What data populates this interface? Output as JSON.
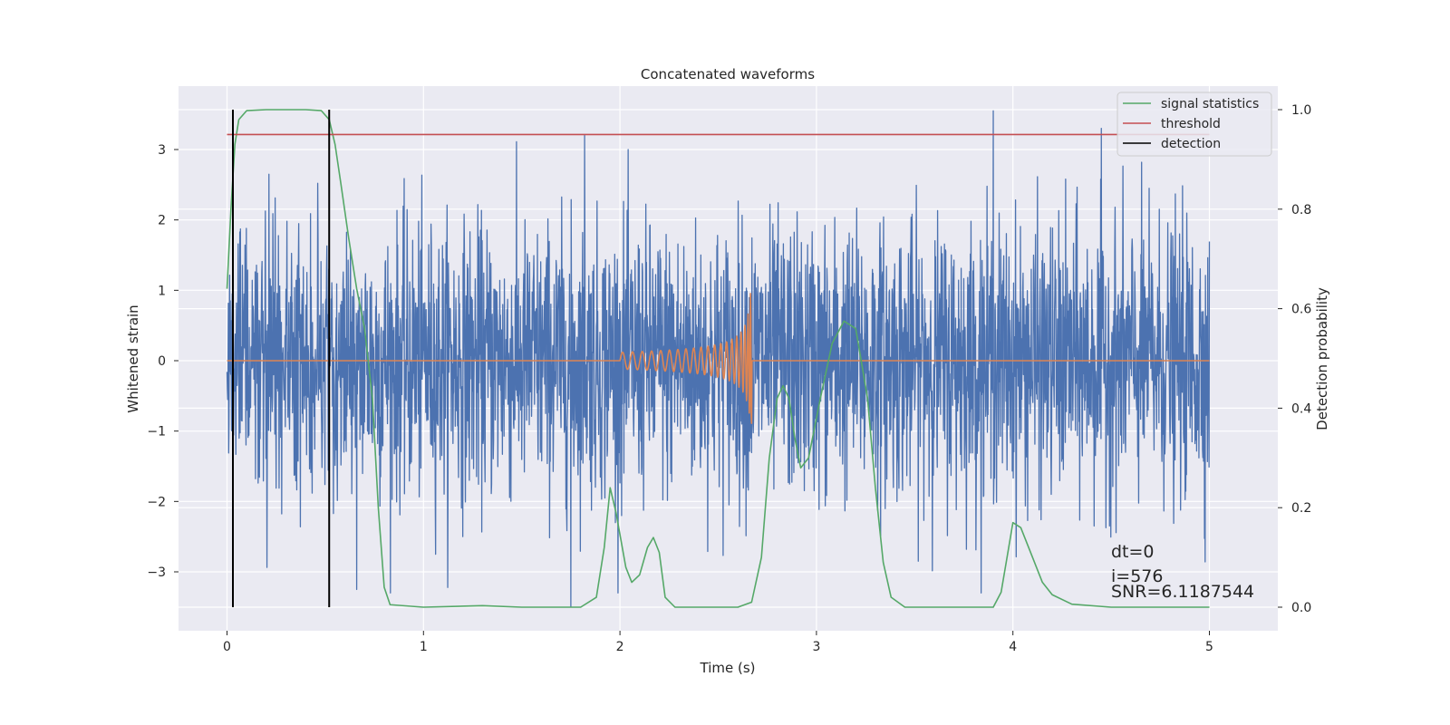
{
  "chart_data": {
    "type": "line",
    "title": "Concatenated waveforms",
    "xlabel": "Time (s)",
    "ylabel_left": "Whitened strain",
    "ylabel_right": "Detection probability",
    "xlim": [
      -0.25,
      5.35
    ],
    "ylim_left": [
      -3.8,
      3.9
    ],
    "ylim_right": [
      -0.05,
      1.03
    ],
    "x_ticks": [
      0,
      1,
      2,
      3,
      4,
      5
    ],
    "y_left_ticks": [
      -3,
      -2,
      -1,
      0,
      1,
      2,
      3
    ],
    "y_right_ticks": [
      0.0,
      0.2,
      0.4,
      0.6,
      0.8,
      1.0
    ],
    "grid": true,
    "legend_position": "top-right",
    "series": [
      {
        "name": "",
        "axis": "left",
        "color": "#4c72b0",
        "kind": "whitened-noise",
        "x_range": [
          0,
          5
        ],
        "envelope_max": 3.55,
        "envelope_min": -3.5,
        "typical_amplitude": 1.6,
        "note_peaks": [
          [
            1.82,
            3.2
          ],
          [
            3.9,
            3.55
          ],
          [
            4.45,
            3.3
          ],
          [
            1.75,
            -3.5
          ],
          [
            0.66,
            -3.25
          ]
        ]
      },
      {
        "name": "",
        "axis": "left",
        "color": "#dd8452",
        "kind": "chirp",
        "x_range": [
          0,
          5
        ],
        "chirp_start": 2.0,
        "merger": 2.67,
        "start_amplitude": 0.12,
        "peak_amplitude": 1.15
      },
      {
        "name": "signal statistics",
        "axis": "right",
        "color": "#55a868",
        "points": [
          [
            0.0,
            0.64
          ],
          [
            0.02,
            0.8
          ],
          [
            0.04,
            0.93
          ],
          [
            0.06,
            0.98
          ],
          [
            0.1,
            0.998
          ],
          [
            0.2,
            1.0
          ],
          [
            0.4,
            1.0
          ],
          [
            0.48,
            0.998
          ],
          [
            0.52,
            0.98
          ],
          [
            0.55,
            0.93
          ],
          [
            0.58,
            0.85
          ],
          [
            0.62,
            0.74
          ],
          [
            0.66,
            0.64
          ],
          [
            0.7,
            0.56
          ],
          [
            0.74,
            0.42
          ],
          [
            0.77,
            0.2
          ],
          [
            0.8,
            0.04
          ],
          [
            0.83,
            0.005
          ],
          [
            1.0,
            0.0
          ],
          [
            1.3,
            0.003
          ],
          [
            1.5,
            0.0
          ],
          [
            1.8,
            0.0
          ],
          [
            1.88,
            0.02
          ],
          [
            1.92,
            0.12
          ],
          [
            1.95,
            0.24
          ],
          [
            1.98,
            0.19
          ],
          [
            2.03,
            0.08
          ],
          [
            2.06,
            0.05
          ],
          [
            2.1,
            0.065
          ],
          [
            2.14,
            0.12
          ],
          [
            2.17,
            0.14
          ],
          [
            2.2,
            0.11
          ],
          [
            2.23,
            0.02
          ],
          [
            2.28,
            0.0
          ],
          [
            2.6,
            0.0
          ],
          [
            2.67,
            0.01
          ],
          [
            2.72,
            0.1
          ],
          [
            2.76,
            0.3
          ],
          [
            2.8,
            0.42
          ],
          [
            2.83,
            0.445
          ],
          [
            2.86,
            0.42
          ],
          [
            2.89,
            0.34
          ],
          [
            2.92,
            0.28
          ],
          [
            2.96,
            0.3
          ],
          [
            3.02,
            0.42
          ],
          [
            3.08,
            0.53
          ],
          [
            3.14,
            0.575
          ],
          [
            3.2,
            0.56
          ],
          [
            3.26,
            0.42
          ],
          [
            3.3,
            0.24
          ],
          [
            3.34,
            0.09
          ],
          [
            3.38,
            0.02
          ],
          [
            3.45,
            0.0
          ],
          [
            3.9,
            0.0
          ],
          [
            3.94,
            0.03
          ],
          [
            3.97,
            0.1
          ],
          [
            4.0,
            0.17
          ],
          [
            4.04,
            0.16
          ],
          [
            4.1,
            0.1
          ],
          [
            4.15,
            0.05
          ],
          [
            4.2,
            0.025
          ],
          [
            4.3,
            0.006
          ],
          [
            4.5,
            0.0
          ],
          [
            5.0,
            0.0
          ]
        ]
      },
      {
        "name": "threshold",
        "axis": "right",
        "color": "#c44e52",
        "value": 0.95,
        "x_range": [
          0,
          5
        ]
      },
      {
        "name": "detection",
        "axis": "right",
        "color": "#000000",
        "x": [
          0.03,
          0.52
        ],
        "y_range": [
          0.0,
          1.0
        ]
      }
    ],
    "annotation": {
      "dt": "dt=0",
      "i": "i=576",
      "snr": "SNR=6.1187544"
    }
  }
}
